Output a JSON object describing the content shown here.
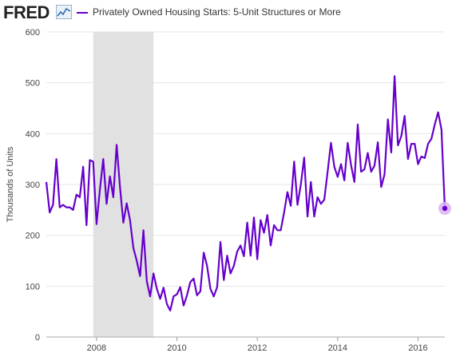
{
  "brand": {
    "name": "FRED"
  },
  "legend": {
    "label": "Privately Owned Housing Starts: 5-Unit Structures or More"
  },
  "colors": {
    "series": "#6600cc",
    "recession": "#e1e1e1",
    "grid": "#e6e6e6",
    "marker_halo": "#d9b3f2"
  },
  "chart_data": {
    "type": "line",
    "ylabel": "Thousands of Units",
    "ylim": [
      0,
      600
    ],
    "yticks": [
      "0",
      "100",
      "200",
      "300",
      "400",
      "500",
      "600"
    ],
    "xticks": [
      "2008",
      "2010",
      "2012",
      "2014",
      "2016"
    ],
    "xlim": [
      "2006-10",
      "2016-09"
    ],
    "grid": true,
    "recession": {
      "start": "2007-12",
      "end": "2009-06"
    },
    "series": [
      {
        "name": "Privately Owned Housing Starts: 5-Unit Structures or More",
        "x": [
          "2006-10",
          "2006-11",
          "2006-12",
          "2007-01",
          "2007-02",
          "2007-03",
          "2007-04",
          "2007-05",
          "2007-06",
          "2007-07",
          "2007-08",
          "2007-09",
          "2007-10",
          "2007-11",
          "2007-12",
          "2008-01",
          "2008-02",
          "2008-03",
          "2008-04",
          "2008-05",
          "2008-06",
          "2008-07",
          "2008-08",
          "2008-09",
          "2008-10",
          "2008-11",
          "2008-12",
          "2009-01",
          "2009-02",
          "2009-03",
          "2009-04",
          "2009-05",
          "2009-06",
          "2009-07",
          "2009-08",
          "2009-09",
          "2009-10",
          "2009-11",
          "2009-12",
          "2010-01",
          "2010-02",
          "2010-03",
          "2010-04",
          "2010-05",
          "2010-06",
          "2010-07",
          "2010-08",
          "2010-09",
          "2010-10",
          "2010-11",
          "2010-12",
          "2011-01",
          "2011-02",
          "2011-03",
          "2011-04",
          "2011-05",
          "2011-06",
          "2011-07",
          "2011-08",
          "2011-09",
          "2011-10",
          "2011-11",
          "2011-12",
          "2012-01",
          "2012-02",
          "2012-03",
          "2012-04",
          "2012-05",
          "2012-06",
          "2012-07",
          "2012-08",
          "2012-09",
          "2012-10",
          "2012-11",
          "2012-12",
          "2013-01",
          "2013-02",
          "2013-03",
          "2013-04",
          "2013-05",
          "2013-06",
          "2013-07",
          "2013-08",
          "2013-09",
          "2013-10",
          "2013-11",
          "2013-12",
          "2014-01",
          "2014-02",
          "2014-03",
          "2014-04",
          "2014-05",
          "2014-06",
          "2014-07",
          "2014-08",
          "2014-09",
          "2014-10",
          "2014-11",
          "2014-12",
          "2015-01",
          "2015-02",
          "2015-03",
          "2015-04",
          "2015-05",
          "2015-06",
          "2015-07",
          "2015-08",
          "2015-09",
          "2015-10",
          "2015-11",
          "2015-12",
          "2016-01",
          "2016-02",
          "2016-03",
          "2016-04",
          "2016-05",
          "2016-06",
          "2016-07",
          "2016-08",
          "2016-09"
        ],
        "values": [
          305,
          245,
          260,
          350,
          255,
          260,
          255,
          255,
          250,
          280,
          275,
          335,
          220,
          348,
          345,
          222,
          290,
          350,
          262,
          316,
          275,
          378,
          295,
          225,
          263,
          230,
          175,
          150,
          120,
          210,
          110,
          80,
          125,
          95,
          75,
          97,
          65,
          52,
          80,
          84,
          98,
          62,
          82,
          108,
          115,
          82,
          90,
          166,
          140,
          95,
          80,
          98,
          187,
          112,
          160,
          125,
          140,
          168,
          180,
          159,
          225,
          160,
          235,
          153,
          230,
          205,
          240,
          180,
          220,
          210,
          210,
          245,
          285,
          258,
          345,
          260,
          300,
          353,
          237,
          305,
          237,
          275,
          262,
          270,
          325,
          382,
          335,
          315,
          340,
          308,
          382,
          338,
          305,
          418,
          325,
          330,
          362,
          325,
          337,
          383,
          295,
          320,
          428,
          363,
          513,
          377,
          395,
          435,
          350,
          380,
          380,
          340,
          355,
          352,
          380,
          390,
          418,
          442,
          408,
          253
        ]
      }
    ]
  }
}
